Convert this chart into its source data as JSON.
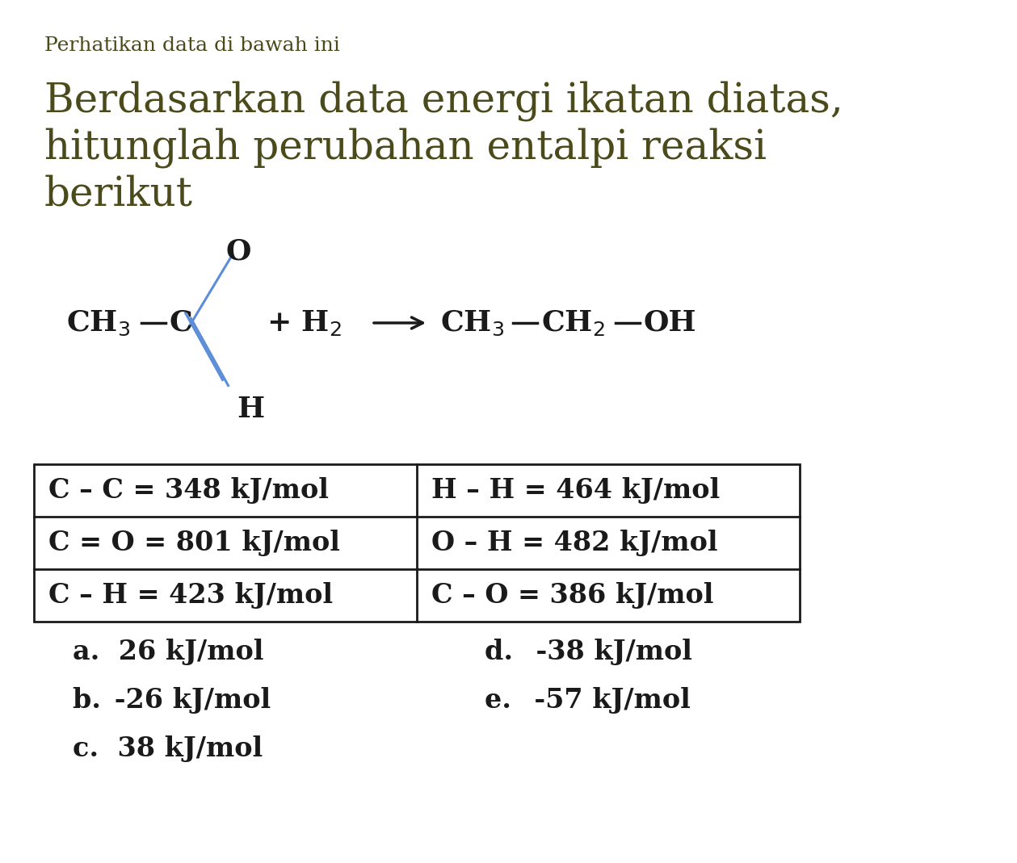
{
  "bg_color": "#ffffff",
  "text_color": "#4a4a1a",
  "title_small": "Perhatikan data di bawah ini",
  "title_large_line1": "Berdasarkan data energi ikatan diatas,",
  "title_large_line2": "hitunglah perubahan entalpi reaksi",
  "title_large_line3": "berikut",
  "table_data": [
    [
      "C – C = 348 kJ/mol",
      "H – H = 464 kJ/mol"
    ],
    [
      "C = O = 801 kJ/mol",
      "O – H = 482 kJ/mol"
    ],
    [
      "C – H = 423 kJ/mol",
      "C – O = 386 kJ/mol"
    ]
  ],
  "options_left": [
    "a.  26 kJ/mol",
    "b. -26 kJ/mol",
    "c.  38 kJ/mol"
  ],
  "options_right": [
    "d.  -38 kJ/mol",
    "e.  -57 kJ/mol"
  ],
  "dark_olive": "#4a4a1a",
  "blue_bond": "#5b8dd9",
  "bond_black": "#1a1a1a",
  "title_small_fs": 18,
  "title_large_fs": 36,
  "struct_fs": 26,
  "table_fs": 24,
  "options_fs": 24
}
